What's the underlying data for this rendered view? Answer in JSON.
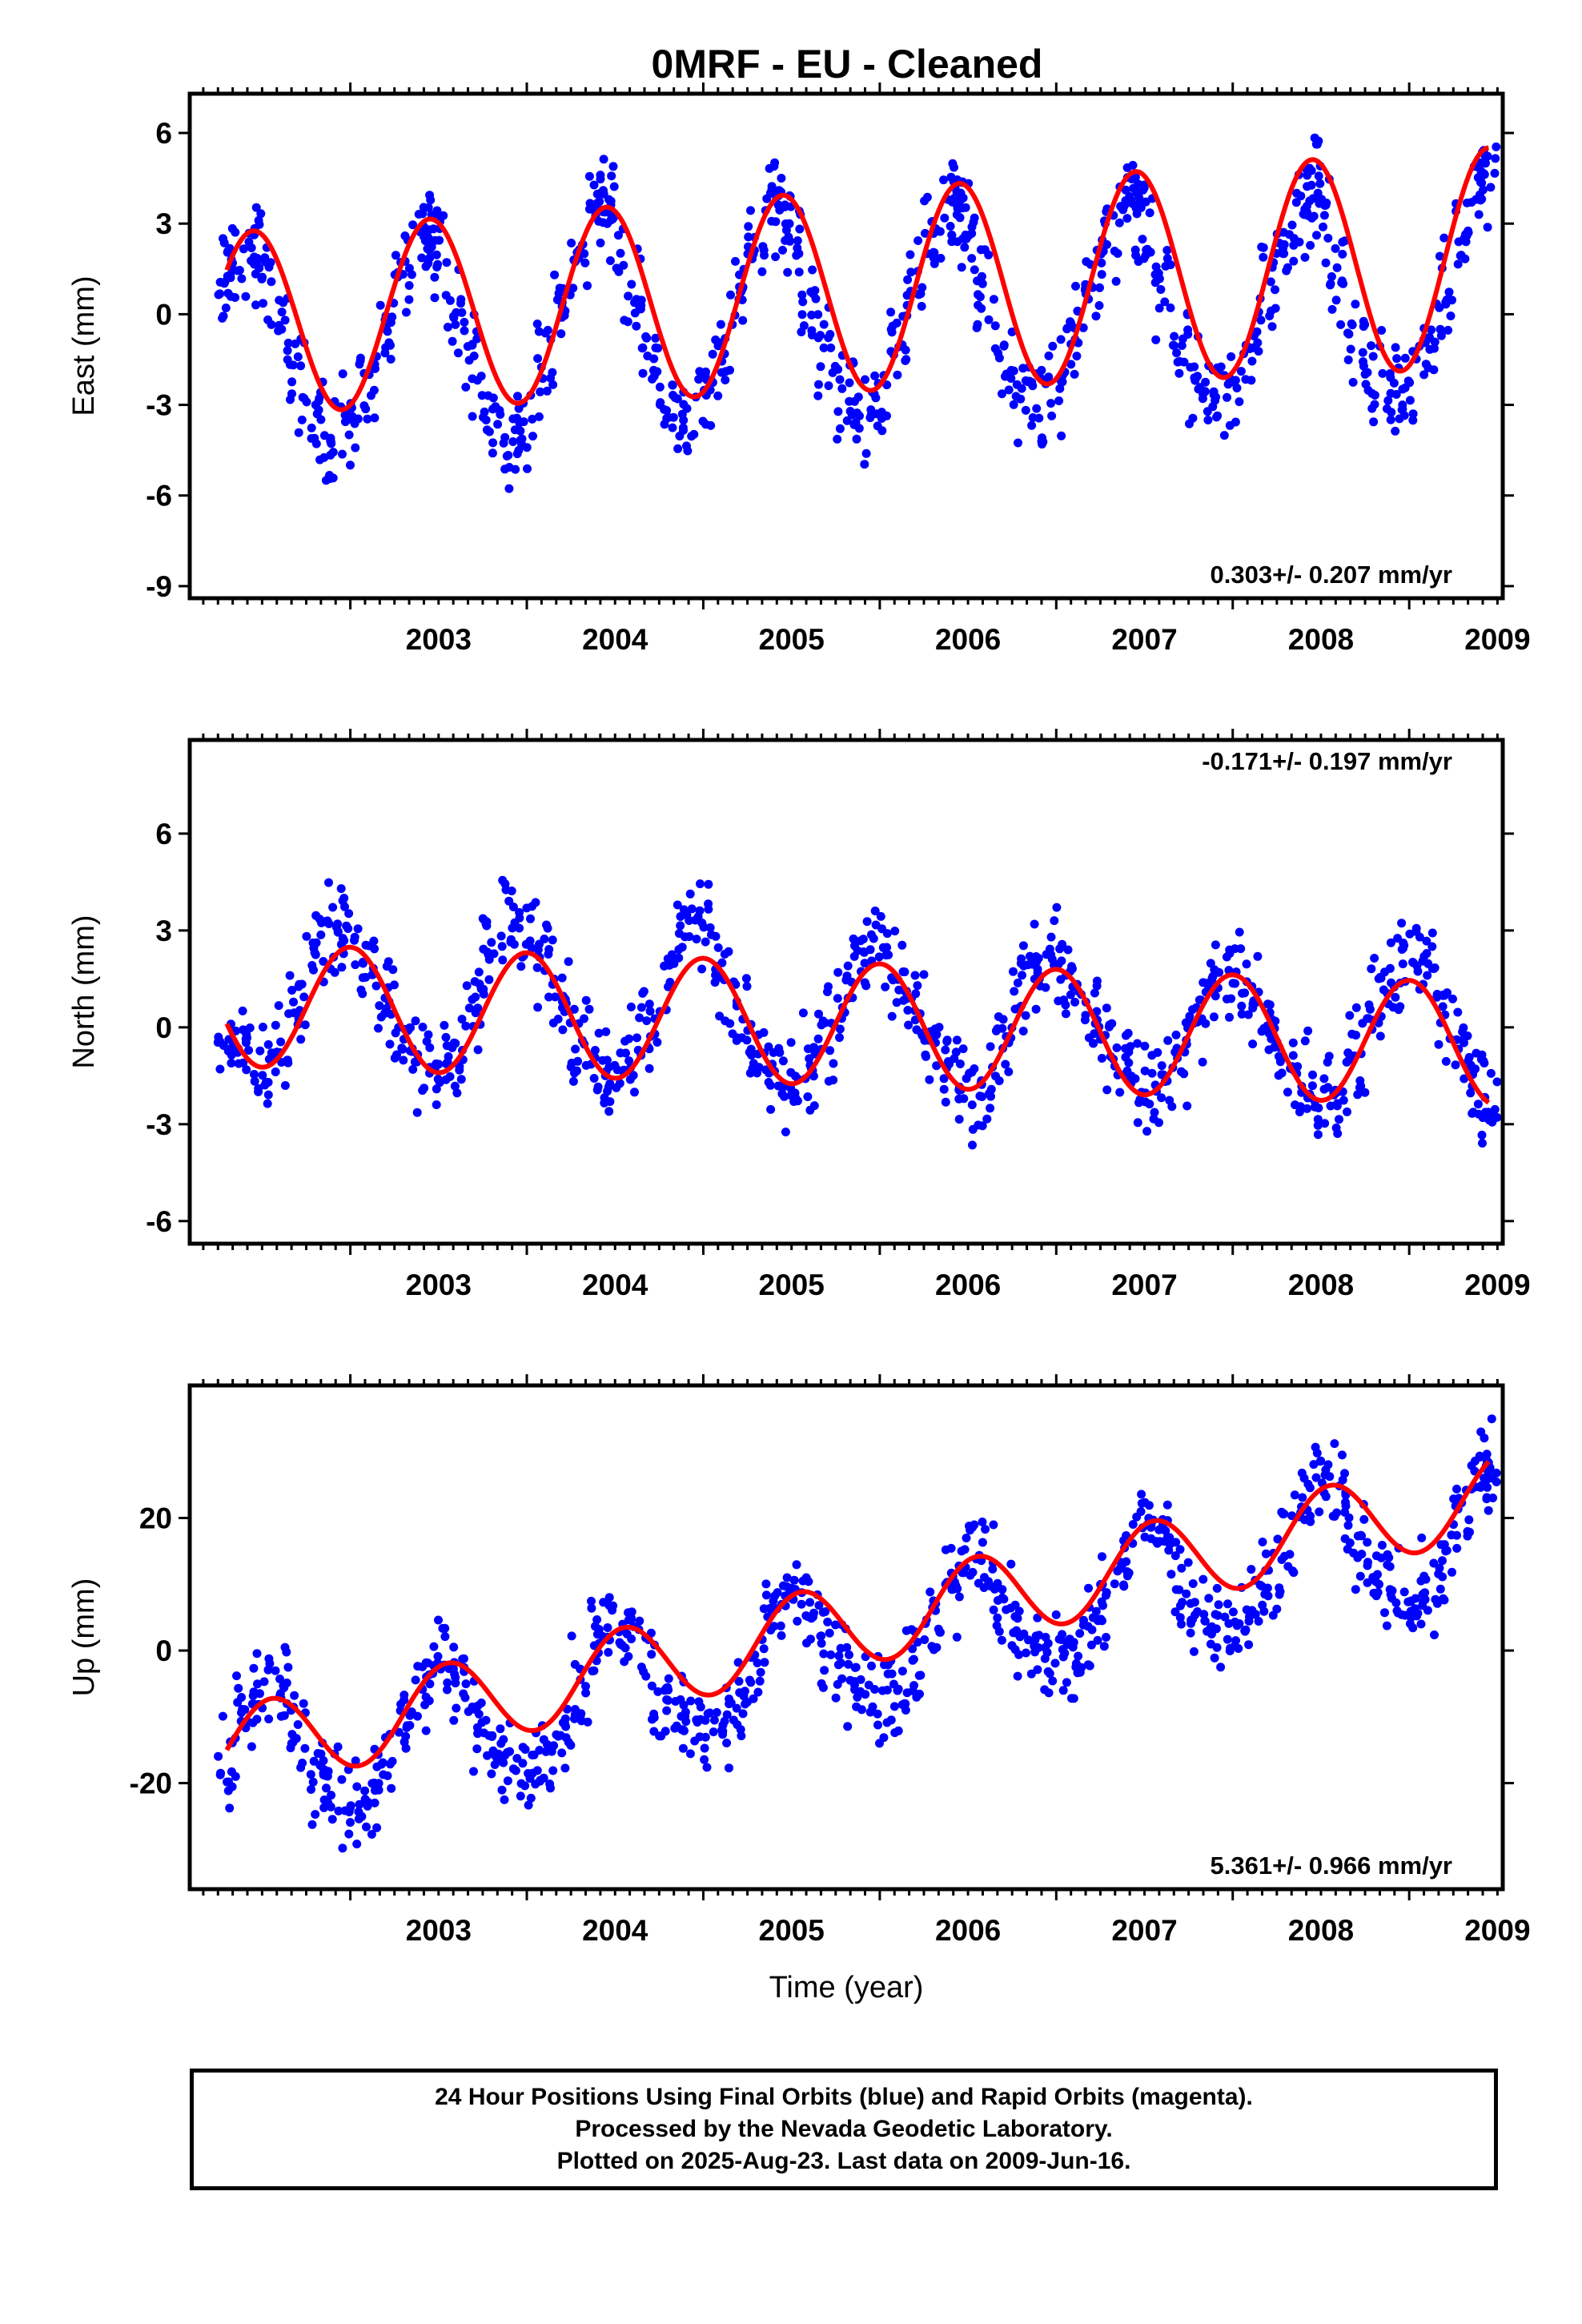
{
  "title": "0MRF  - EU - Cleaned",
  "caption": [
    "24 Hour Positions Using Final Orbits (blue) and Rapid Orbits (magenta).",
    "Processed by the Nevada Geodetic Laboratory.",
    "Plotted on 2025-Aug-23. Last data on 2009-Jun-16."
  ],
  "colors": {
    "points": "#0000ff",
    "fit": "#ff0000",
    "frame": "#000000"
  },
  "chart_data": [
    {
      "type": "scatter",
      "id": "east",
      "ylabel": "East (mm)",
      "xlabel": "",
      "xlim": [
        2002.09,
        2009.53
      ],
      "ylim": [
        -9.4,
        7.3
      ],
      "xticks": [
        2003,
        2004,
        2005,
        2006,
        2007,
        2008,
        2009
      ],
      "yticks": [
        -9,
        -6,
        -3,
        0,
        3,
        6
      ],
      "rate_label": "0.303+/- 0.207 mm/yr",
      "rate_position": "bottom-right",
      "series": [
        {
          "kind": "points",
          "x": [
            2002.3,
            2002.35,
            2002.45,
            2002.5,
            2002.6,
            2002.7,
            2002.8,
            2002.9,
            2003.0,
            2003.1,
            2003.2,
            2003.3,
            2003.4,
            2003.45,
            2003.5,
            2003.6,
            2003.7,
            2003.8,
            2003.9,
            2004.0,
            2004.1,
            2004.2,
            2004.3,
            2004.4,
            2004.45,
            2004.5,
            2004.6,
            2004.7,
            2004.8,
            2004.9,
            2005.0,
            2005.1,
            2005.2,
            2005.3,
            2005.4,
            2005.45,
            2005.5,
            2005.6,
            2005.7,
            2005.8,
            2005.9,
            2006.0,
            2006.1,
            2006.2,
            2006.3,
            2006.4,
            2006.45,
            2006.5,
            2006.6,
            2006.7,
            2006.8,
            2006.9,
            2007.0,
            2007.1,
            2007.2,
            2007.3,
            2007.4,
            2007.45,
            2007.5,
            2007.6,
            2007.7,
            2007.8,
            2007.9,
            2008.0,
            2008.1,
            2008.2,
            2008.3,
            2008.4,
            2008.45,
            2008.5,
            2008.6,
            2008.7,
            2008.8,
            2008.9,
            2009.0,
            2009.1,
            2009.2,
            2009.3,
            2009.4,
            2009.45
          ],
          "y": [
            1.0,
            1.8,
            2.5,
            1.6,
            -0.5,
            -2.2,
            -3.5,
            -4.3,
            -4.0,
            -2.6,
            -0.6,
            1.3,
            2.6,
            2.9,
            2.1,
            0.2,
            -1.8,
            -3.2,
            -4.2,
            -3.6,
            -1.8,
            0.4,
            2.0,
            3.4,
            3.9,
            2.8,
            0.6,
            -1.7,
            -2.9,
            -3.8,
            -2.8,
            -1.1,
            0.6,
            2.1,
            3.4,
            3.6,
            2.5,
            0.4,
            -1.6,
            -2.9,
            -3.4,
            -3.0,
            -1.2,
            0.8,
            2.4,
            3.6,
            3.8,
            2.6,
            0.6,
            -1.5,
            -2.5,
            -3.0,
            -2.4,
            -0.9,
            1.0,
            2.7,
            3.8,
            3.9,
            3.0,
            1.0,
            -0.8,
            -2.2,
            -2.7,
            -2.5,
            -1.1,
            0.9,
            2.5,
            3.8,
            4.3,
            3.2,
            1.0,
            -0.9,
            -1.9,
            -2.6,
            -2.2,
            -1.0,
            0.9,
            2.5,
            4.0,
            4.6
          ]
        },
        {
          "kind": "fit",
          "amplitude": 3.0,
          "peak_phase": 0.45,
          "offset": -0.3,
          "trend": 0.303,
          "amp_trend": 0.09
        }
      ]
    },
    {
      "type": "scatter",
      "id": "north",
      "ylabel": "North (mm)",
      "xlabel": "",
      "xlim": [
        2002.09,
        2009.53
      ],
      "ylim": [
        -6.7,
        8.9
      ],
      "xticks": [
        2003,
        2004,
        2005,
        2006,
        2007,
        2008,
        2009
      ],
      "yticks": [
        -6,
        -3,
        0,
        3,
        6
      ],
      "rate_label": "-0.171+/- 0.197 mm/yr",
      "rate_position": "top-right",
      "series": [
        {
          "kind": "points",
          "x": [
            2002.3,
            2002.4,
            2002.5,
            2002.6,
            2002.7,
            2002.8,
            2002.9,
            2003.0,
            2003.1,
            2003.2,
            2003.3,
            2003.4,
            2003.5,
            2003.6,
            2003.7,
            2003.8,
            2003.9,
            2004.0,
            2004.1,
            2004.2,
            2004.3,
            2004.4,
            2004.5,
            2004.6,
            2004.7,
            2004.8,
            2004.9,
            2005.0,
            2005.1,
            2005.2,
            2005.3,
            2005.4,
            2005.5,
            2005.6,
            2005.7,
            2005.8,
            2005.9,
            2006.0,
            2006.1,
            2006.2,
            2006.3,
            2006.4,
            2006.5,
            2006.6,
            2006.7,
            2006.8,
            2006.9,
            2007.0,
            2007.1,
            2007.2,
            2007.3,
            2007.4,
            2007.5,
            2007.6,
            2007.7,
            2007.8,
            2007.9,
            2008.0,
            2008.1,
            2008.2,
            2008.3,
            2008.4,
            2008.5,
            2008.6,
            2008.7,
            2008.8,
            2008.9,
            2009.0,
            2009.1,
            2009.2,
            2009.3,
            2009.4,
            2009.45
          ],
          "y": [
            -0.3,
            -0.8,
            -1.2,
            -0.6,
            0.8,
            2.4,
            3.1,
            3.2,
            2.0,
            0.6,
            -0.4,
            -1.0,
            -1.3,
            -0.9,
            0.4,
            2.1,
            3.3,
            3.1,
            1.8,
            0.5,
            -0.6,
            -1.2,
            -1.6,
            -1.0,
            0.1,
            1.6,
            2.9,
            3.0,
            1.9,
            0.6,
            -0.6,
            -1.3,
            -1.8,
            -1.3,
            -0.2,
            1.2,
            2.3,
            2.6,
            1.7,
            0.4,
            -0.7,
            -1.4,
            -2.0,
            -1.8,
            -0.5,
            1.0,
            2.1,
            2.4,
            1.6,
            0.3,
            -0.7,
            -1.5,
            -2.2,
            -2.0,
            -0.8,
            0.7,
            1.6,
            1.8,
            1.1,
            0.0,
            -0.9,
            -1.7,
            -2.4,
            -2.3,
            -0.9,
            0.7,
            1.6,
            2.3,
            2.0,
            0.4,
            -0.8,
            -1.8,
            -2.4
          ]
        },
        {
          "kind": "fit",
          "amplitude": 1.9,
          "peak_phase": 0.0,
          "offset": 0.7,
          "trend": -0.171,
          "amp_trend": 0.0
        }
      ]
    },
    {
      "type": "scatter",
      "id": "up",
      "ylabel": "Up (mm)",
      "xlabel": "Time (year)",
      "xlim": [
        2002.09,
        2009.53
      ],
      "ylim": [
        -36,
        40
      ],
      "xticks": [
        2003,
        2004,
        2005,
        2006,
        2007,
        2008,
        2009
      ],
      "yticks": [
        -20,
        0,
        20
      ],
      "rate_label": "5.361+/- 0.966 mm/yr",
      "rate_position": "bottom-right",
      "series": [
        {
          "kind": "points",
          "x": [
            2002.3,
            2002.4,
            2002.5,
            2002.6,
            2002.7,
            2002.8,
            2002.9,
            2003.0,
            2003.1,
            2003.2,
            2003.3,
            2003.4,
            2003.5,
            2003.6,
            2003.7,
            2003.8,
            2003.9,
            2004.0,
            2004.1,
            2004.2,
            2004.3,
            2004.4,
            2004.5,
            2004.6,
            2004.7,
            2004.8,
            2004.9,
            2005.0,
            2005.1,
            2005.2,
            2005.3,
            2005.4,
            2005.5,
            2005.6,
            2005.7,
            2005.8,
            2005.9,
            2006.0,
            2006.1,
            2006.2,
            2006.3,
            2006.4,
            2006.5,
            2006.6,
            2006.7,
            2006.8,
            2006.9,
            2007.0,
            2007.1,
            2007.2,
            2007.3,
            2007.4,
            2007.5,
            2007.6,
            2007.7,
            2007.8,
            2007.9,
            2008.0,
            2008.1,
            2008.2,
            2008.3,
            2008.4,
            2008.5,
            2008.6,
            2008.7,
            2008.8,
            2008.9,
            2009.0,
            2009.1,
            2009.2,
            2009.3,
            2009.4,
            2009.45
          ],
          "y": [
            -17,
            -10,
            -6,
            -7,
            -12,
            -18,
            -22,
            -24,
            -23,
            -19,
            -11,
            -5,
            -2,
            -4,
            -9,
            -14,
            -17,
            -18,
            -17,
            -13,
            -6,
            1,
            4,
            2,
            -4,
            -9,
            -11,
            -12,
            -11,
            -8,
            -2,
            5,
            9,
            7,
            1,
            -3,
            -6,
            -7,
            -6,
            -3,
            3,
            10,
            15,
            13,
            6,
            1,
            -1,
            -2,
            -1,
            2,
            8,
            15,
            20,
            18,
            11,
            7,
            4,
            4,
            5,
            8,
            15,
            22,
            26,
            23,
            16,
            12,
            10,
            9,
            10,
            13,
            19,
            25,
            28
          ]
        },
        {
          "kind": "fit",
          "amplitude": 6.4,
          "peak_phase": 0.55,
          "offset": -15.0,
          "trend": 5.361,
          "amp_trend": 0.0
        }
      ]
    }
  ]
}
